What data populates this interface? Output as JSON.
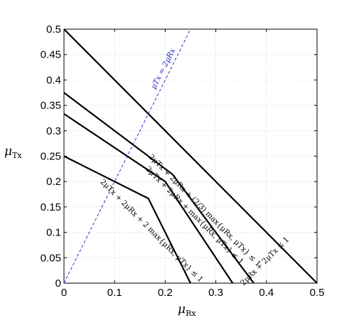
{
  "chart_data": {
    "type": "line",
    "title": "",
    "xlabel": "μ_Rx",
    "ylabel": "μ_Tx",
    "xlim": [
      0,
      0.5
    ],
    "ylim": [
      0,
      0.5
    ],
    "grid": true,
    "x_ticks": [
      "0",
      "0.1",
      "0.2",
      "0.3",
      "0.4",
      "0.5"
    ],
    "y_ticks": [
      "0",
      "0.05",
      "0.1",
      "0.15",
      "0.2",
      "0.25",
      "0.3",
      "0.35",
      "0.4",
      "0.45",
      "0.5"
    ],
    "x_tick_values": [
      0,
      0.1,
      0.2,
      0.3,
      0.4,
      0.5
    ],
    "y_tick_values": [
      0,
      0.05,
      0.1,
      0.15,
      0.2,
      0.25,
      0.3,
      0.35,
      0.4,
      0.45,
      0.5
    ],
    "series": [
      {
        "label": "2μRx + 2μTx ≤ 1",
        "color": "#000000",
        "dashed": false,
        "points": [
          [
            0,
            0.5
          ],
          [
            0.5,
            0
          ]
        ]
      },
      {
        "label": "2μTx + 2μRx + (2/3) max{μRx, μTx} ≤ 1",
        "color": "#000000",
        "dashed": false,
        "points": [
          [
            0,
            0.375
          ],
          [
            0.2143,
            0.2143
          ],
          [
            0.375,
            0
          ]
        ]
      },
      {
        "label": "2μTx + 2μRx + max{μRx, μTx} ≤ 1",
        "color": "#000000",
        "dashed": false,
        "points": [
          [
            0,
            0.3333
          ],
          [
            0.2,
            0.2
          ],
          [
            0.3333,
            0
          ]
        ]
      },
      {
        "label": "2μTx + 2μRx + 2 max{μRx, μTx} ≤ 1",
        "color": "#000000",
        "dashed": false,
        "points": [
          [
            0,
            0.25
          ],
          [
            0.1667,
            0.1667
          ],
          [
            0.25,
            0
          ]
        ]
      },
      {
        "label": "μTx = 2μRx",
        "color": "#2233cc",
        "dashed": true,
        "points": [
          [
            0,
            0
          ],
          [
            0.25,
            0.5
          ]
        ]
      }
    ],
    "annotations": [
      {
        "text": "2μRx + 2μTx ≤ 1",
        "x": 0.4,
        "y": 0.04,
        "angle": -45
      },
      {
        "text": "2μTx + 2μRx + (2/3) max{μRx, μTx} ≤ 1",
        "x": 0.275,
        "y": 0.14,
        "angle": 45
      },
      {
        "text": "2μTx + 2μRx + max{μRx, μTx} ≤ 1",
        "x": 0.255,
        "y": 0.13,
        "angle": 45
      },
      {
        "text": "2μTx + 2μRx + 2 max{μRx, μTx} ≤ 1",
        "x": 0.17,
        "y": 0.1,
        "angle": 45
      },
      {
        "text": "μTx = 2μRx",
        "x": 0.2,
        "y": 0.42,
        "angle": -63
      }
    ]
  },
  "labels": {
    "ylabel_main": "μ",
    "ylabel_sub": "Tx",
    "xlabel_main": "μ",
    "xlabel_sub": "Rx"
  }
}
